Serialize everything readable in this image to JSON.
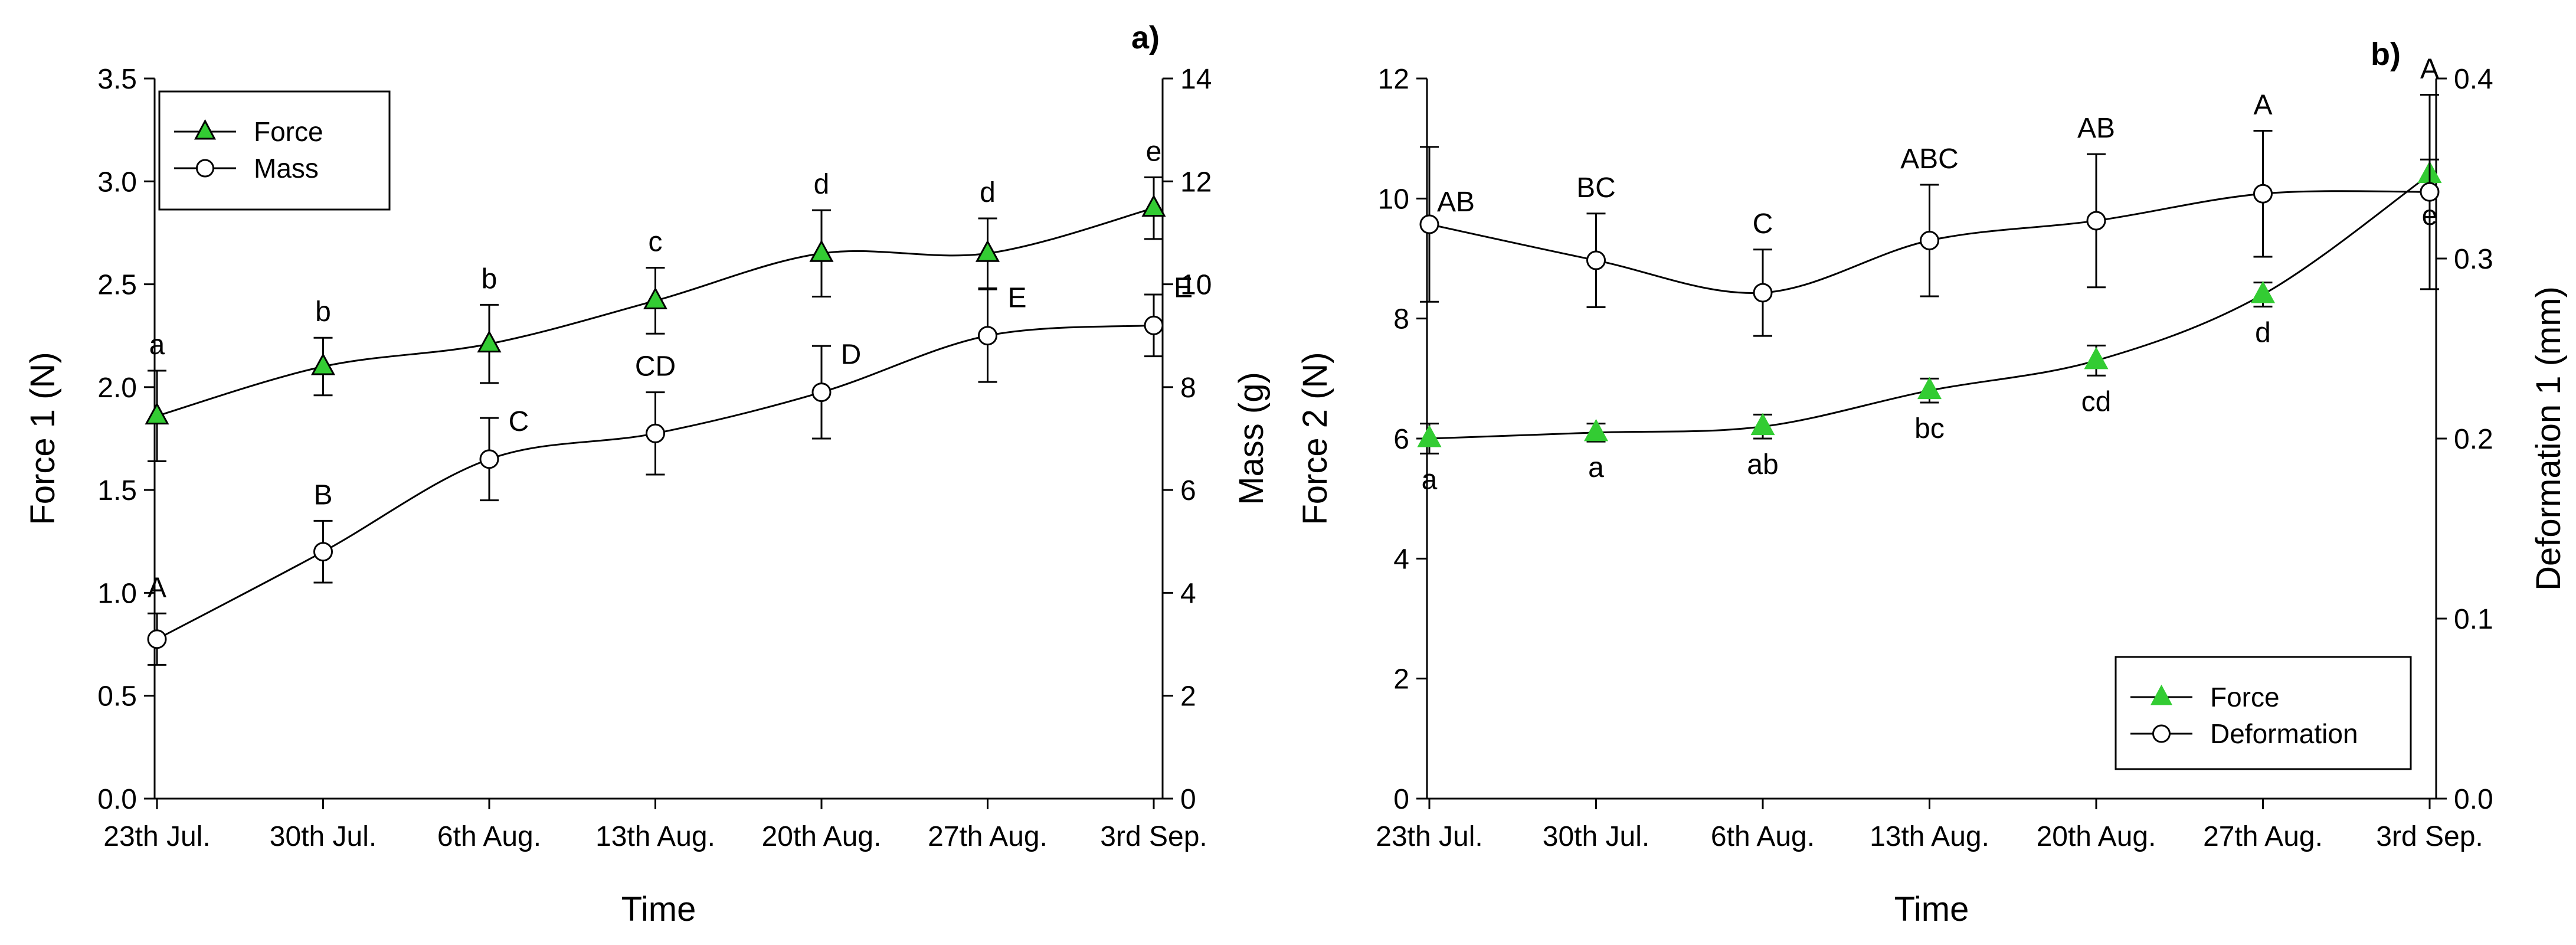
{
  "chart_data": [
    {
      "type": "line",
      "panel_label": "a)",
      "xlabel": "Time",
      "ylabel": "Force 1 (N)",
      "y2label": "Mass (g)",
      "categories": [
        "23th Jul.",
        "30th Jul.",
        "6th Aug.",
        "13th Aug.",
        "20th Aug.",
        "27th Aug.",
        "3rd Sep."
      ],
      "ylim": [
        0,
        3.5
      ],
      "yticks": [
        "0.0",
        "0.5",
        "1.0",
        "1.5",
        "2.0",
        "2.5",
        "3.0",
        "3.5"
      ],
      "y2lim": [
        0,
        14
      ],
      "y2ticks": [
        "0",
        "2",
        "4",
        "6",
        "8",
        "10",
        "12",
        "14"
      ],
      "legend_position": "top-left",
      "series": [
        {
          "name": "Force",
          "axis": "left",
          "marker": "triangle",
          "color": "#33cc33",
          "values": [
            1.86,
            2.1,
            2.21,
            2.42,
            2.65,
            2.65,
            2.87
          ],
          "errors": [
            0.22,
            0.14,
            0.19,
            0.16,
            0.21,
            0.17,
            0.15
          ],
          "labels": [
            "a",
            "b",
            "b",
            "c",
            "d",
            "d",
            "e"
          ]
        },
        {
          "name": "Mass",
          "axis": "right",
          "marker": "circle",
          "color": "#ffffff",
          "values": [
            3.1,
            4.8,
            6.6,
            7.1,
            7.9,
            9.0,
            9.2
          ],
          "errors": [
            0.5,
            0.6,
            0.8,
            0.8,
            0.9,
            0.9,
            0.6
          ],
          "labels": [
            "A",
            "B",
            "C",
            "CD",
            "D",
            "E",
            "E"
          ]
        }
      ]
    },
    {
      "type": "line",
      "panel_label": "b)",
      "xlabel": "Time",
      "ylabel": "Force 2 (N)",
      "y2label": "Deformation 1 (mm)",
      "categories": [
        "23th Jul.",
        "30th Jul.",
        "6th Aug.",
        "13th Aug.",
        "20th Aug.",
        "27th Aug.",
        "3rd Sep."
      ],
      "ylim": [
        0,
        12
      ],
      "yticks": [
        "0",
        "2",
        "4",
        "6",
        "8",
        "10",
        "12"
      ],
      "y2lim": [
        0,
        0.4
      ],
      "y2ticks": [
        "0.0",
        "0.1",
        "0.2",
        "0.3",
        "0.4"
      ],
      "legend_position": "bottom-right",
      "series": [
        {
          "name": "Force",
          "axis": "left",
          "marker": "triangle",
          "color": "#33cc33",
          "values": [
            6.0,
            6.1,
            6.2,
            6.8,
            7.3,
            8.4,
            10.4
          ],
          "errors": [
            0.25,
            0.15,
            0.2,
            0.2,
            0.25,
            0.2,
            0.25
          ],
          "labels": [
            "a",
            "a",
            "ab",
            "bc",
            "cd",
            "d",
            "e"
          ]
        },
        {
          "name": "Deformation",
          "axis": "right",
          "marker": "circle",
          "color": "#ffffff",
          "values": [
            0.319,
            0.299,
            0.281,
            0.31,
            0.321,
            0.336,
            0.337
          ],
          "errors": [
            0.043,
            0.026,
            0.024,
            0.031,
            0.037,
            0.035,
            0.054
          ],
          "labels": [
            "AB",
            "BC",
            "C",
            "ABC",
            "AB",
            "A",
            "A"
          ]
        }
      ]
    }
  ]
}
